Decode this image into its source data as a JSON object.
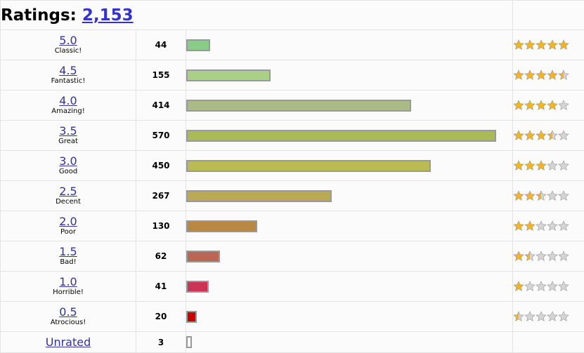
{
  "header": {
    "title": "Ratings:",
    "total": "2,153"
  },
  "rows": [
    {
      "score": "5.0",
      "label": "Classic!",
      "count": "44",
      "fraction": 0.0772,
      "color": "#88cc88",
      "stars": [
        1,
        1,
        1,
        1,
        1
      ]
    },
    {
      "score": "4.5",
      "label": "Fantastic!",
      "count": "155",
      "fraction": 0.2719,
      "color": "#aad088",
      "stars": [
        1,
        1,
        1,
        1,
        0.5
      ]
    },
    {
      "score": "4.0",
      "label": "Amazing!",
      "count": "414",
      "fraction": 0.7263,
      "color": "#aabb88",
      "stars": [
        1,
        1,
        1,
        1,
        0
      ]
    },
    {
      "score": "3.5",
      "label": "Great",
      "count": "570",
      "fraction": 1.0,
      "color": "#aabb55",
      "stars": [
        1,
        1,
        1,
        0.5,
        0
      ]
    },
    {
      "score": "3.0",
      "label": "Good",
      "count": "450",
      "fraction": 0.7895,
      "color": "#bbbb55",
      "stars": [
        1,
        1,
        1,
        0,
        0
      ]
    },
    {
      "score": "2.5",
      "label": "Decent",
      "count": "267",
      "fraction": 0.4684,
      "color": "#bbaa55",
      "stars": [
        1,
        1,
        0.5,
        0,
        0
      ]
    },
    {
      "score": "2.0",
      "label": "Poor",
      "count": "130",
      "fraction": 0.2281,
      "color": "#bb8844",
      "stars": [
        1,
        1,
        0,
        0,
        0
      ]
    },
    {
      "score": "1.5",
      "label": "Bad!",
      "count": "62",
      "fraction": 0.1088,
      "color": "#bb6655",
      "stars": [
        1,
        0.5,
        0,
        0,
        0
      ]
    },
    {
      "score": "1.0",
      "label": "Horrible!",
      "count": "41",
      "fraction": 0.0719,
      "color": "#cc3355",
      "stars": [
        1,
        0,
        0,
        0,
        0
      ]
    },
    {
      "score": "0.5",
      "label": "Atrocious!",
      "count": "20",
      "fraction": 0.0351,
      "color": "#cc0000",
      "stars": [
        0.5,
        0,
        0,
        0,
        0
      ]
    }
  ],
  "unrated": {
    "label": "Unrated",
    "count": "3",
    "fraction": 0.0053,
    "color": "#ffffff"
  },
  "star_colors": {
    "filled": "#f5b323",
    "empty": "#d4d4d4"
  }
}
